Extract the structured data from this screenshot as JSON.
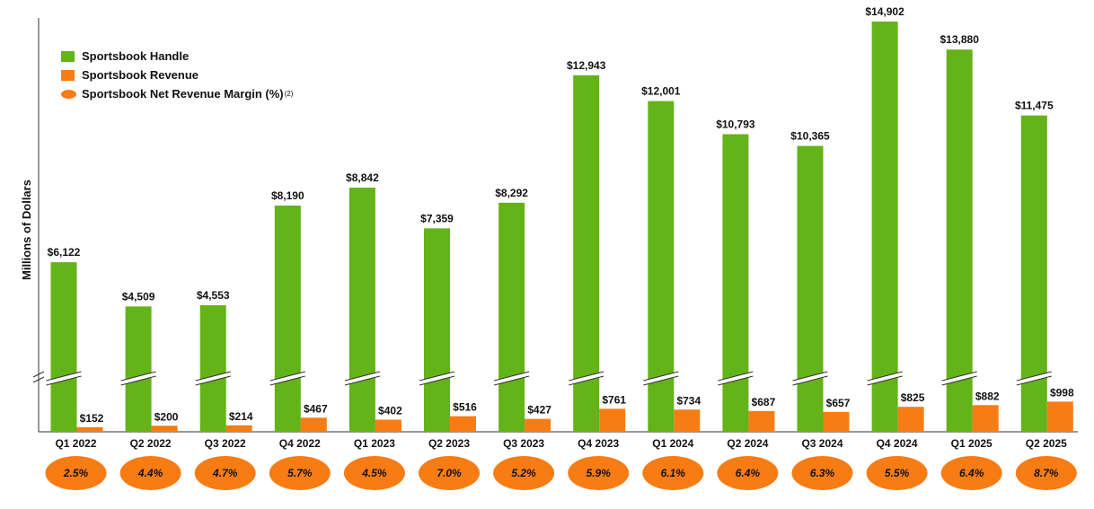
{
  "legend": {
    "handle_label": "Sportsbook Handle",
    "revenue_label": "Sportsbook Revenue",
    "margin_label": "Sportsbook Net Revenue Margin (%)",
    "margin_footnote": "(2)"
  },
  "colors": {
    "handle": "#63b319",
    "revenue": "#f77c14",
    "margin": "#f77c14"
  },
  "chart_data": {
    "type": "bar",
    "ylabel": "Millions of Dollars",
    "y_axis_broken": true,
    "categories": [
      "Q1 2022",
      "Q2 2022",
      "Q3 2022",
      "Q4 2022",
      "Q1 2023",
      "Q2 2023",
      "Q3 2023",
      "Q4 2023",
      "Q1 2024",
      "Q2 2024",
      "Q3 2024",
      "Q4 2024",
      "Q1 2025",
      "Q2 2025"
    ],
    "series": [
      {
        "name": "Sportsbook Handle",
        "values": [
          6122,
          4509,
          4553,
          8190,
          8842,
          7359,
          8292,
          12943,
          12001,
          10793,
          10365,
          14902,
          13880,
          11475
        ],
        "labels": [
          "$6,122",
          "$4,509",
          "$4,553",
          "$8,190",
          "$8,842",
          "$7,359",
          "$8,292",
          "$12,943",
          "$12,001",
          "$10,793",
          "$10,365",
          "$14,902",
          "$13,880",
          "$11,475"
        ]
      },
      {
        "name": "Sportsbook Revenue",
        "values": [
          152,
          200,
          214,
          467,
          402,
          516,
          427,
          761,
          734,
          687,
          657,
          825,
          882,
          998
        ],
        "labels": [
          "$152",
          "$200",
          "$214",
          "$467",
          "$402",
          "$516",
          "$427",
          "$761",
          "$734",
          "$687",
          "$657",
          "$825",
          "$882",
          "$998"
        ]
      },
      {
        "name": "Sportsbook Net Revenue Margin (%)",
        "values": [
          2.5,
          4.4,
          4.7,
          5.7,
          4.5,
          7.0,
          5.2,
          5.9,
          6.1,
          6.4,
          6.3,
          5.5,
          6.4,
          8.7
        ],
        "labels": [
          "2.5%",
          "4.4%",
          "4.7%",
          "5.7%",
          "4.5%",
          "7.0%",
          "5.2%",
          "5.9%",
          "6.1%",
          "6.4%",
          "6.3%",
          "5.5%",
          "6.4%",
          "8.7%"
        ]
      }
    ]
  }
}
